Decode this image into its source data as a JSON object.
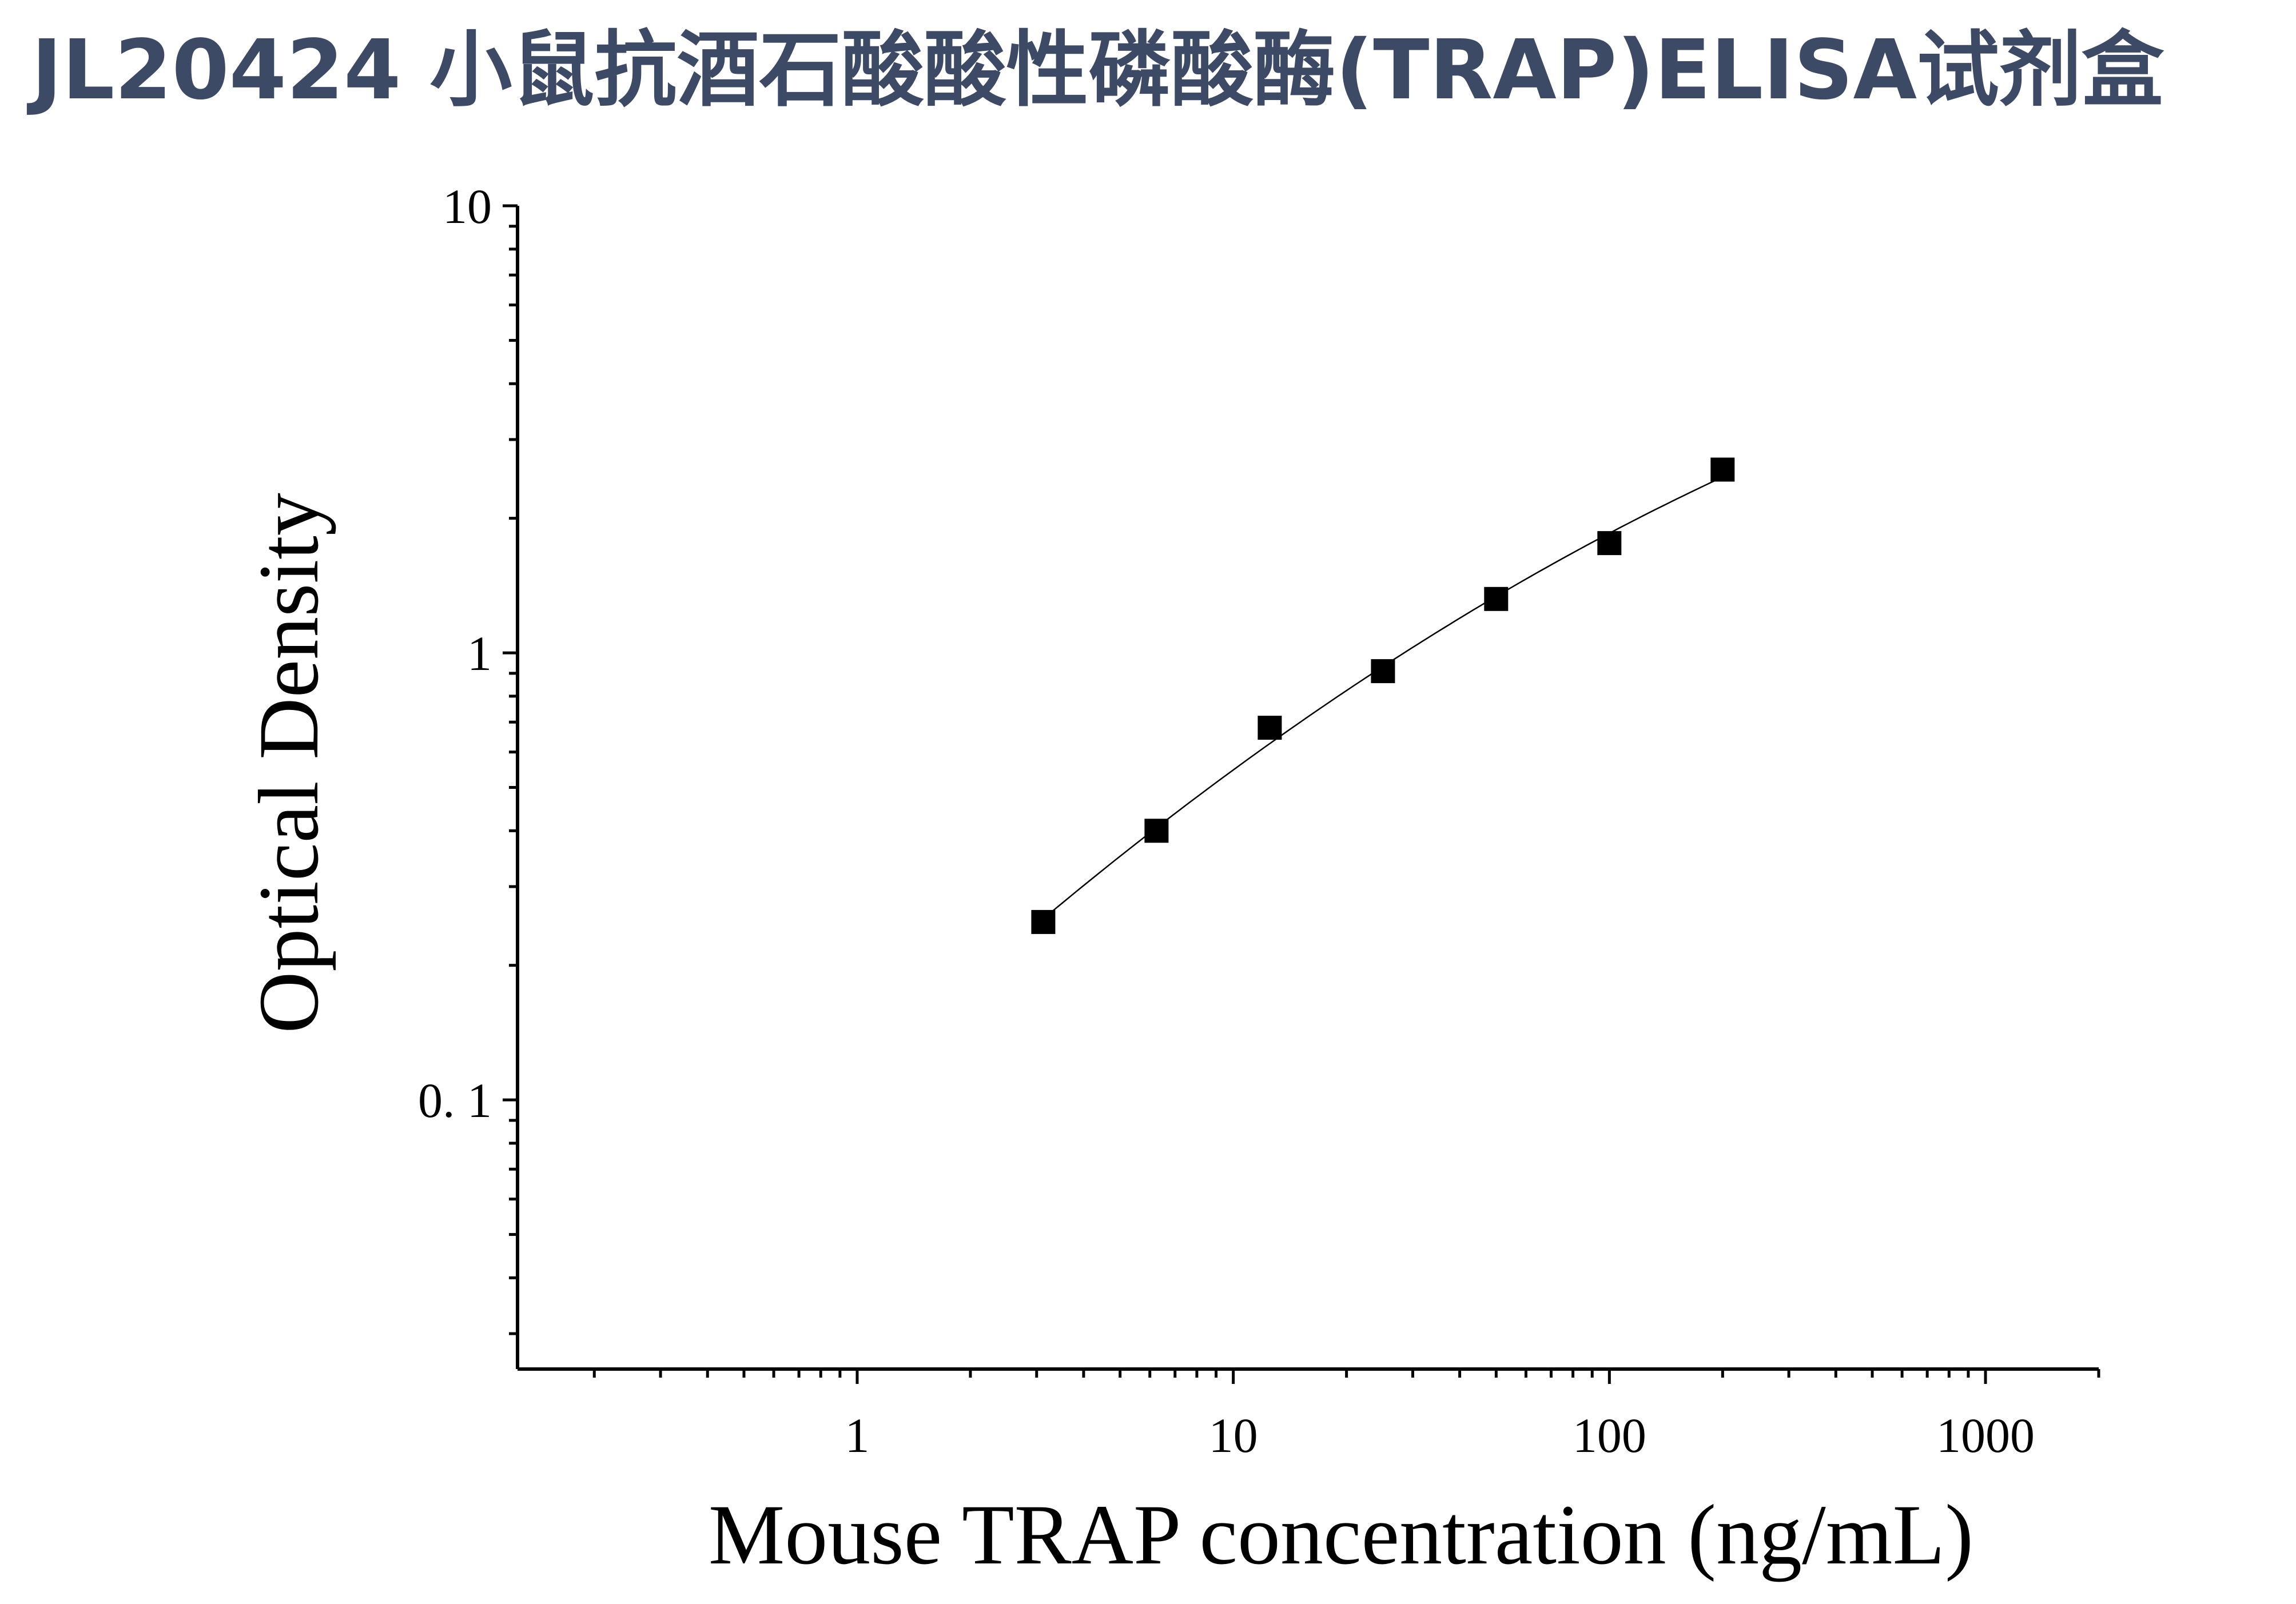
{
  "title": "JL20424 小鼠抗酒石酸酸性磷酸酶(TRAP)ELISA试剂盒",
  "colors": {
    "title": "#3d4a66",
    "axis": "#000000",
    "marker": "#000000",
    "curve": "#000000"
  },
  "chart_data": {
    "type": "scatter",
    "xlabel": "Mouse TRAP concentration (ng/mL)",
    "ylabel": "Optical Density",
    "xscale": "log",
    "yscale": "log",
    "xlim": [
      0.125,
      2000
    ],
    "ylim": [
      0.025,
      10
    ],
    "x_ticks": [
      {
        "value": 1,
        "label": "1"
      },
      {
        "value": 10,
        "label": "10"
      },
      {
        "value": 100,
        "label": "100"
      },
      {
        "value": 1000,
        "label": "1000"
      }
    ],
    "y_ticks": [
      {
        "value": 0.1,
        "label": "0. 1"
      },
      {
        "value": 1,
        "label": "1"
      },
      {
        "value": 10,
        "label": "10"
      }
    ],
    "grid": false,
    "legend": "none",
    "marker": "square",
    "fit_curve": true,
    "series": [
      {
        "x": [
          3.125,
          6.25,
          12.5,
          25,
          50,
          100,
          200
        ],
        "y": [
          0.25,
          0.4,
          0.68,
          0.91,
          1.32,
          1.76,
          2.57
        ]
      }
    ]
  }
}
